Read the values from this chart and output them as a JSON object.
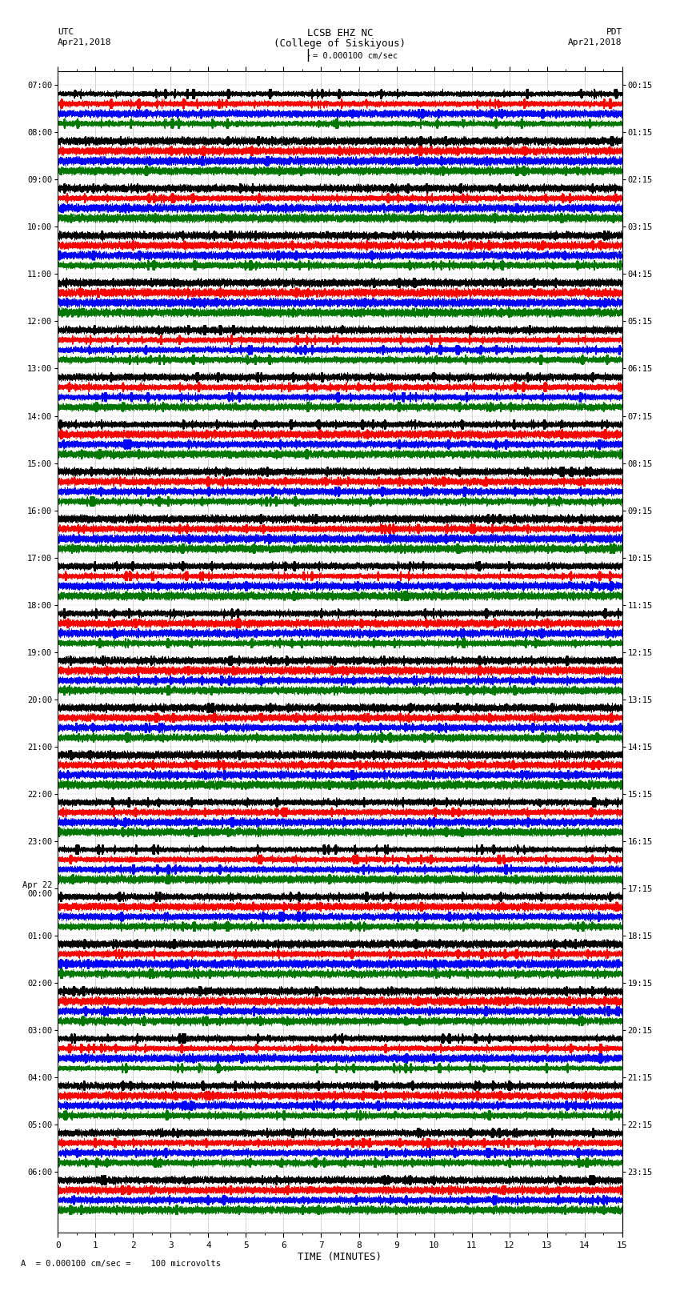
{
  "title_line1": "LCSB EHZ NC",
  "title_line2": "(College of Siskiyous)",
  "scale_label": "= 0.000100 cm/sec",
  "bottom_label": "A  = 0.000100 cm/sec =    100 microvolts",
  "xlabel": "TIME (MINUTES)",
  "utc_label": "UTC",
  "pdt_label": "PDT",
  "date_left": "Apr21,2018",
  "date_right": "Apr21,2018",
  "bg_color": "#ffffff",
  "trace_colors": [
    "#000000",
    "#ff0000",
    "#0000ff",
    "#007700"
  ],
  "left_times": [
    "07:00",
    "08:00",
    "09:00",
    "10:00",
    "11:00",
    "12:00",
    "13:00",
    "14:00",
    "15:00",
    "16:00",
    "17:00",
    "18:00",
    "19:00",
    "20:00",
    "21:00",
    "22:00",
    "23:00",
    "Apr 22\n00:00",
    "01:00",
    "02:00",
    "03:00",
    "04:00",
    "05:00",
    "06:00"
  ],
  "right_times": [
    "00:15",
    "01:15",
    "02:15",
    "03:15",
    "04:15",
    "05:15",
    "06:15",
    "07:15",
    "08:15",
    "09:15",
    "10:15",
    "11:15",
    "12:15",
    "13:15",
    "14:15",
    "15:15",
    "16:15",
    "17:15",
    "18:15",
    "19:15",
    "20:15",
    "21:15",
    "22:15",
    "23:15"
  ],
  "n_rows": 24,
  "n_traces_per_row": 4,
  "duration_minutes": 15,
  "sample_rate": 50,
  "figwidth": 8.5,
  "figheight": 16.13
}
